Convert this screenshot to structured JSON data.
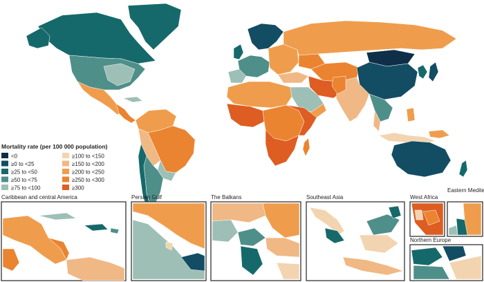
{
  "legend": {
    "title": "Mortality rate (per 100 000 population)",
    "items": [
      {
        "label": "<0",
        "color": "#0e2f47"
      },
      {
        "label": "≥0 to <25",
        "color": "#124d63"
      },
      {
        "label": "≥25 to <50",
        "color": "#16696b"
      },
      {
        "label": "≥50 to <75",
        "color": "#4f8f8a"
      },
      {
        "label": "≥75 to <100",
        "color": "#9dbfb6"
      },
      {
        "label": "≥100 to <150",
        "color": "#f3d4b0"
      },
      {
        "label": "≥150 to <200",
        "color": "#f0b884"
      },
      {
        "label": "≥200 to <250",
        "color": "#ef9d4c"
      },
      {
        "label": "≥250 to <300",
        "color": "#ea8430"
      },
      {
        "label": "≥300",
        "color": "#dd5d22"
      }
    ]
  },
  "insets": [
    {
      "title": "Caribbean and central America"
    },
    {
      "title": "Persian Gulf"
    },
    {
      "title": "The Balkans"
    },
    {
      "title": "Southeast Asia"
    },
    {
      "title": "West Africa"
    },
    {
      "title": "Eastern Mediterranean"
    },
    {
      "title": "Northern Europe"
    }
  ]
}
